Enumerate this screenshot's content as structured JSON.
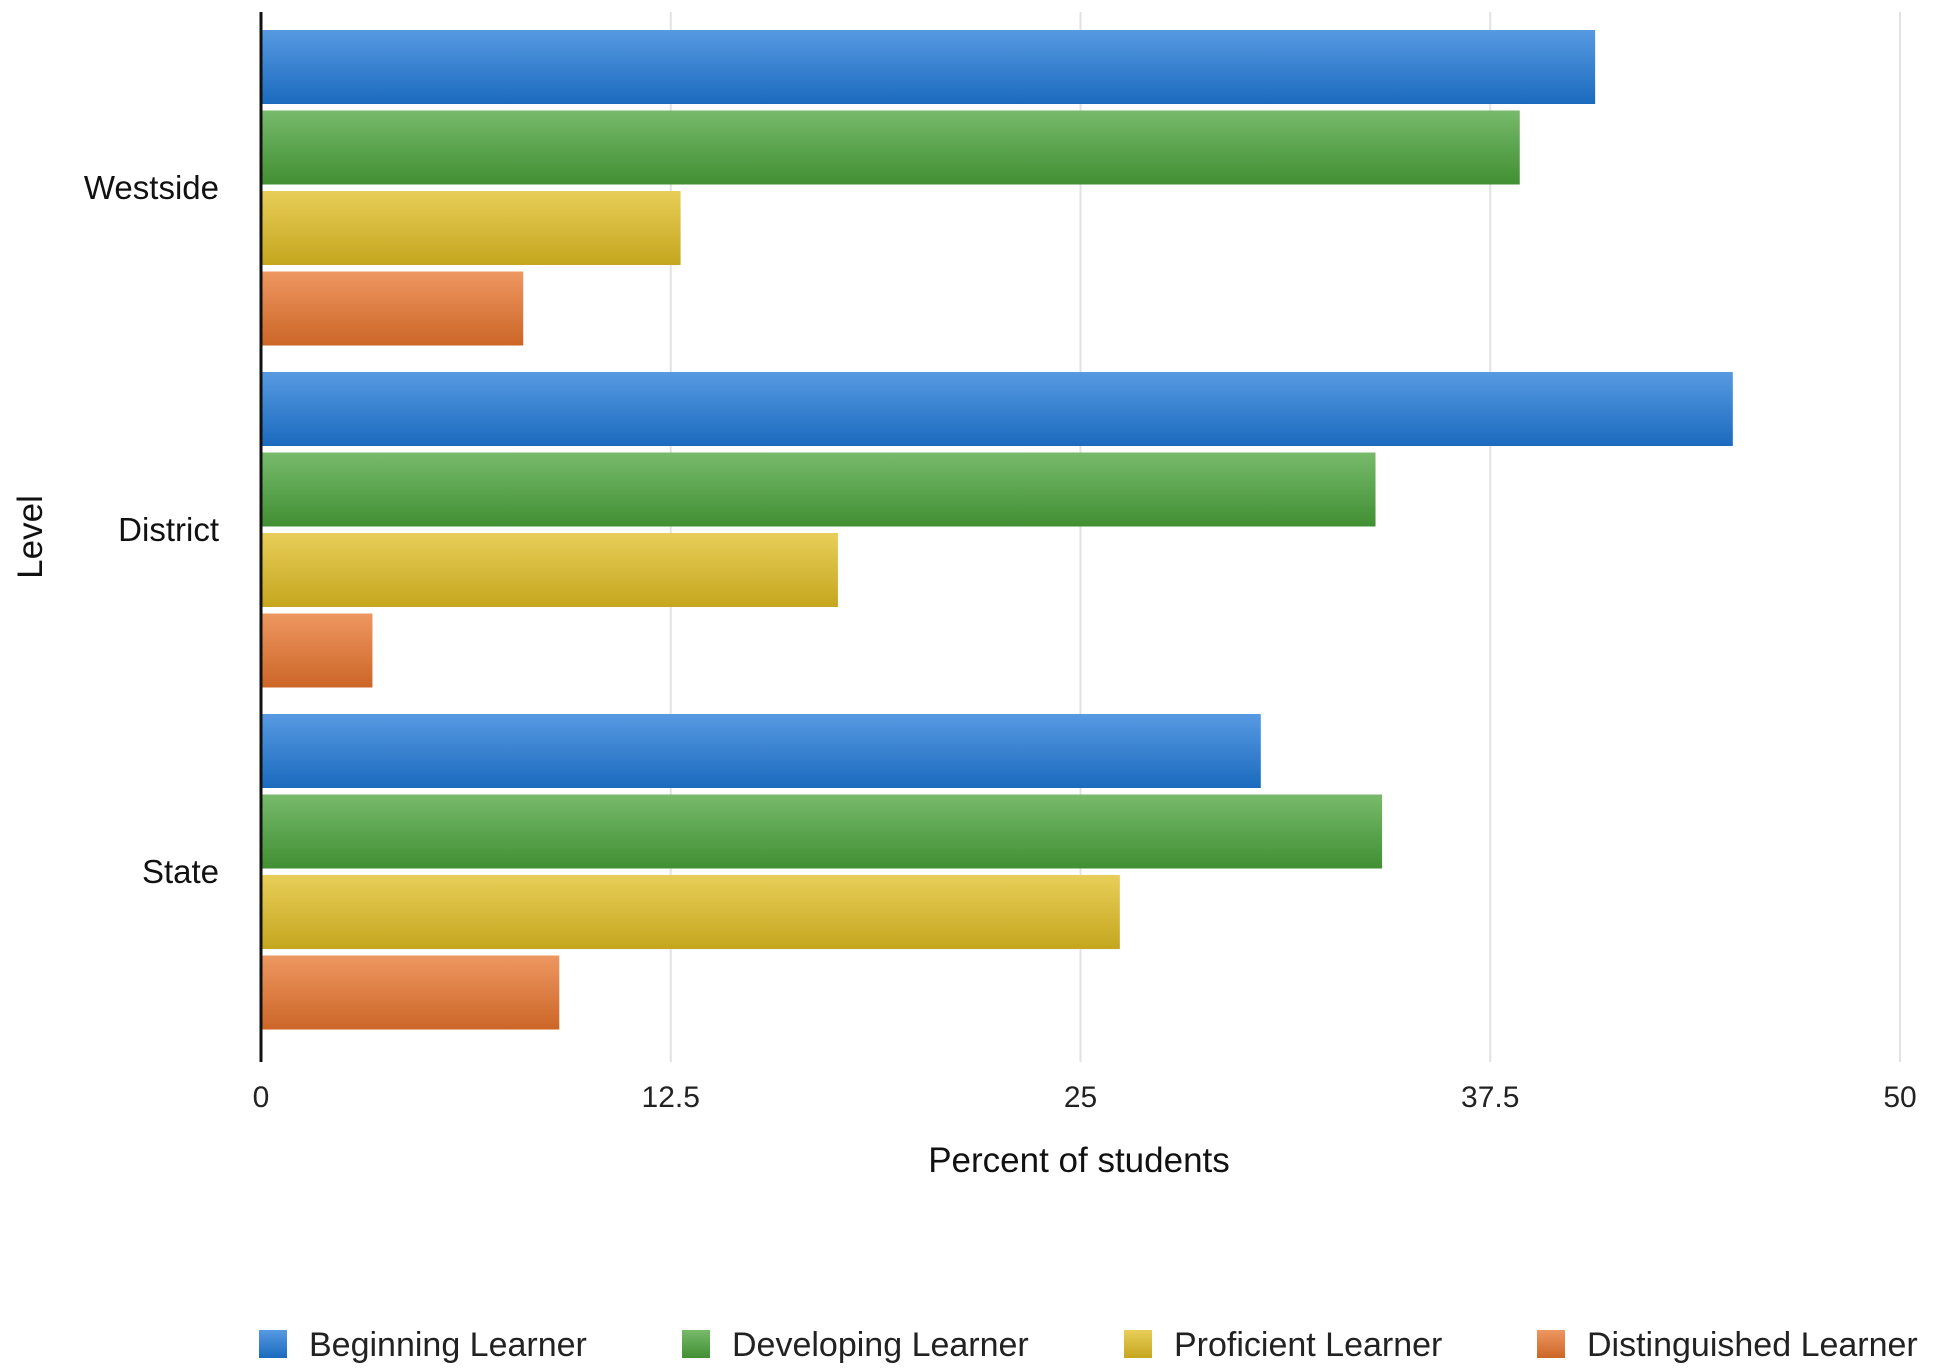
{
  "chart_data": {
    "type": "bar",
    "orientation": "horizontal",
    "categories": [
      "Westside",
      "District",
      "State"
    ],
    "series": [
      {
        "name": "Beginning Learner",
        "color": "#1f78d8",
        "values": [
          40.7,
          44.9,
          30.5
        ]
      },
      {
        "name": "Developing Learner",
        "color": "#4aa33a",
        "values": [
          38.4,
          34.0,
          34.2
        ]
      },
      {
        "name": "Proficient Learner",
        "color": "#e0bd22",
        "values": [
          12.8,
          17.6,
          26.2
        ]
      },
      {
        "name": "Distinguished Learner",
        "color": "#e8742c",
        "values": [
          8.0,
          3.4,
          9.1
        ]
      }
    ],
    "xlabel": "Percent of students",
    "ylabel": "Level",
    "xlim": [
      0,
      50
    ],
    "xticks": [
      "0",
      "12.5",
      "25",
      "37.5",
      "50"
    ],
    "xtick_values": [
      0,
      12.5,
      25,
      37.5,
      50
    ],
    "grid": true,
    "legend": "bottom"
  }
}
